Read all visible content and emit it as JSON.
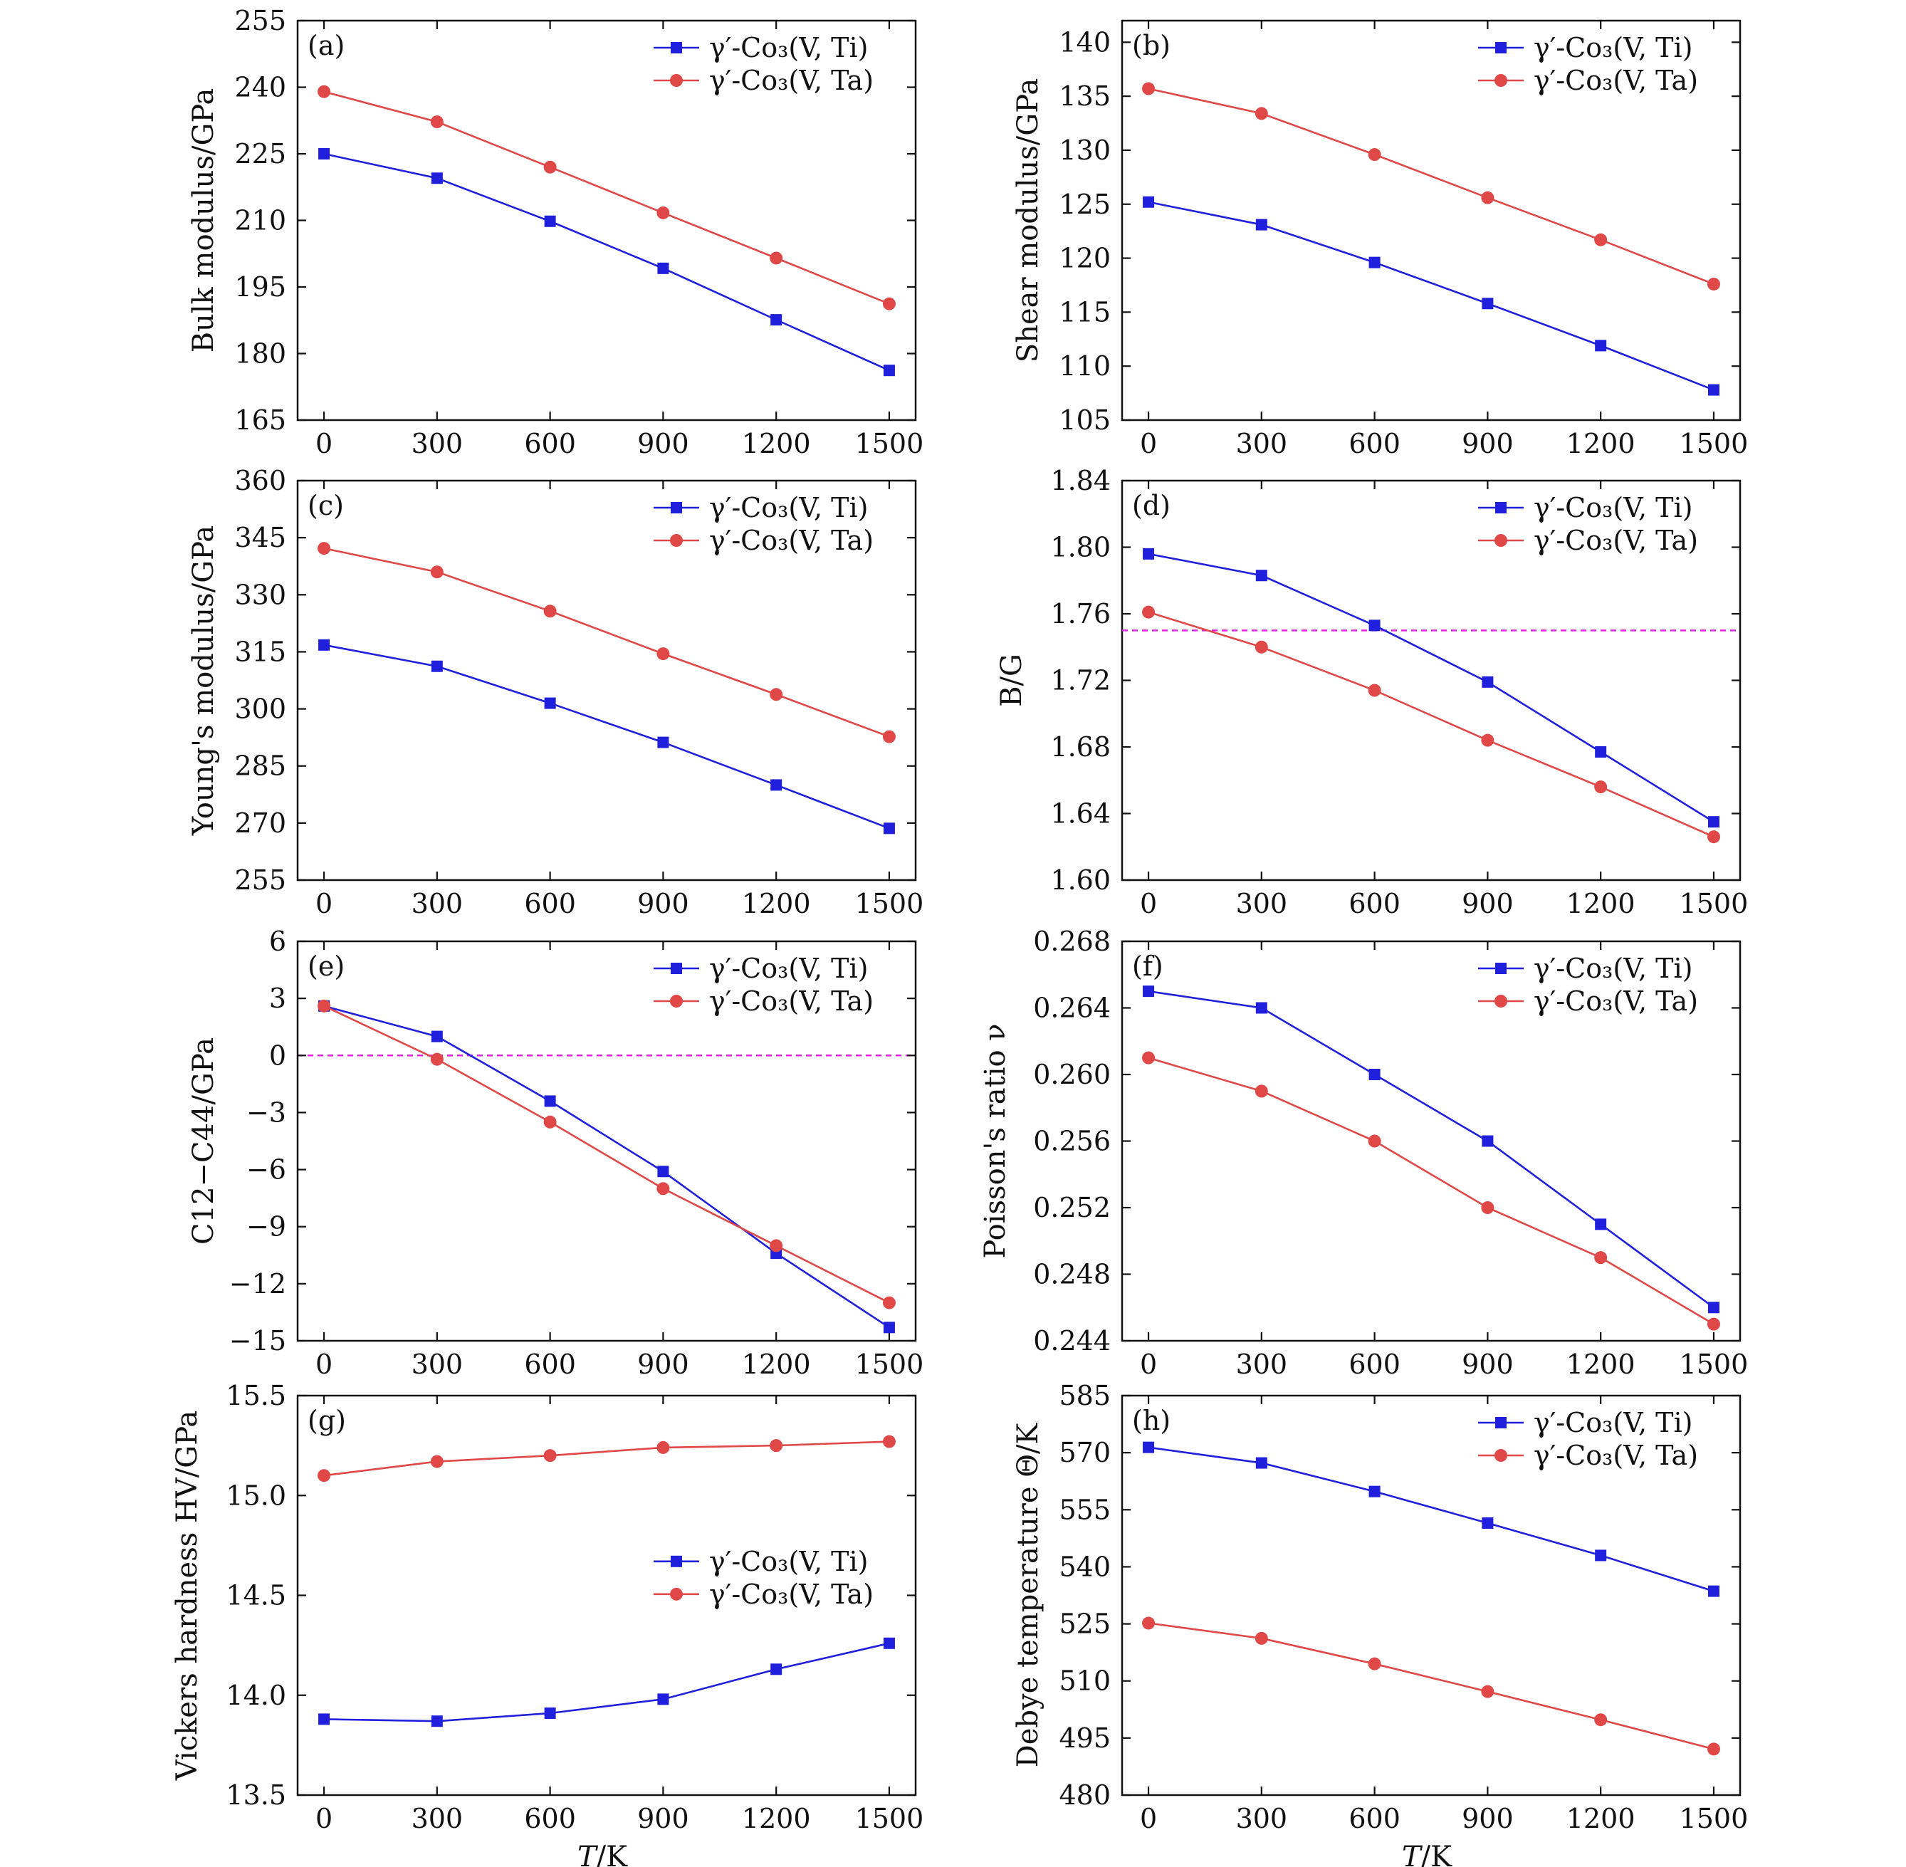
{
  "figure": {
    "x_ticks": [
      "0",
      "300",
      "600",
      "900",
      "1200",
      "1500"
    ],
    "x_values": [
      0,
      300,
      600,
      900,
      1200,
      1500
    ],
    "x_label_var": "T",
    "x_label_unit": "/K",
    "legend": {
      "ti": "γ′-Co₃(V, Ti)",
      "ta": "γ′-Co₃(V, Ta)"
    },
    "colors": {
      "ti": "#1f1fdc",
      "ta": "#e04848",
      "reference_line": "#e020e0"
    }
  },
  "chart_data": [
    {
      "type": "line",
      "panel": "(a)",
      "title": "",
      "ylabel": "Bulk modulus/GPa",
      "xlabel": "T/K",
      "x": [
        0,
        300,
        600,
        900,
        1200,
        1500
      ],
      "ylim": [
        165,
        255
      ],
      "yticks": [
        165,
        180,
        195,
        210,
        225,
        240,
        255
      ],
      "ytick_labels": [
        "165",
        "180",
        "195",
        "210",
        "225",
        "240",
        "255"
      ],
      "legend_position": "top-right",
      "series": [
        {
          "name": "γ′-Co₃(V, Ti)",
          "marker": "square",
          "values": [
            225.0,
            219.5,
            209.8,
            199.2,
            187.6,
            176.2
          ]
        },
        {
          "name": "γ′-Co₃(V, Ta)",
          "marker": "circle",
          "values": [
            239.0,
            232.2,
            222.0,
            211.7,
            201.5,
            191.2
          ]
        }
      ]
    },
    {
      "type": "line",
      "panel": "(b)",
      "title": "",
      "ylabel": "Shear modulus/GPa",
      "xlabel": "T/K",
      "x": [
        0,
        300,
        600,
        900,
        1200,
        1500
      ],
      "ylim": [
        105,
        142
      ],
      "yticks": [
        105,
        110,
        115,
        120,
        125,
        130,
        135,
        140
      ],
      "ytick_labels": [
        "105",
        "110",
        "115",
        "120",
        "125",
        "130",
        "135",
        "140"
      ],
      "legend_position": "top-right",
      "series": [
        {
          "name": "γ′-Co₃(V, Ti)",
          "marker": "square",
          "values": [
            125.2,
            123.1,
            119.6,
            115.8,
            111.9,
            107.8
          ]
        },
        {
          "name": "γ′-Co₃(V, Ta)",
          "marker": "circle",
          "values": [
            135.7,
            133.4,
            129.6,
            125.6,
            121.7,
            117.6
          ]
        }
      ]
    },
    {
      "type": "line",
      "panel": "(c)",
      "title": "",
      "ylabel": "Young's modulus/GPa",
      "xlabel": "T/K",
      "x": [
        0,
        300,
        600,
        900,
        1200,
        1500
      ],
      "ylim": [
        255,
        360
      ],
      "yticks": [
        255,
        270,
        285,
        300,
        315,
        330,
        345,
        360
      ],
      "ytick_labels": [
        "255",
        "270",
        "285",
        "300",
        "315",
        "330",
        "345",
        "360"
      ],
      "legend_position": "top-right",
      "series": [
        {
          "name": "γ′-Co₃(V, Ti)",
          "marker": "square",
          "values": [
            316.8,
            311.2,
            301.5,
            291.2,
            280.0,
            268.6
          ]
        },
        {
          "name": "γ′-Co₃(V, Ta)",
          "marker": "circle",
          "values": [
            342.2,
            336.0,
            325.7,
            314.5,
            303.8,
            292.7
          ]
        }
      ]
    },
    {
      "type": "line",
      "panel": "(d)",
      "title": "",
      "ylabel": "B/G",
      "xlabel": "T/K",
      "x": [
        0,
        300,
        600,
        900,
        1200,
        1500
      ],
      "ylim": [
        1.6,
        1.84
      ],
      "yticks": [
        1.6,
        1.64,
        1.68,
        1.72,
        1.76,
        1.8,
        1.84
      ],
      "ytick_labels": [
        "1.60",
        "1.64",
        "1.68",
        "1.72",
        "1.76",
        "1.80",
        "1.84"
      ],
      "legend_position": "top-right",
      "reference_line": 1.75,
      "series": [
        {
          "name": "γ′-Co₃(V, Ti)",
          "marker": "square",
          "values": [
            1.796,
            1.783,
            1.753,
            1.719,
            1.677,
            1.635
          ]
        },
        {
          "name": "γ′-Co₃(V, Ta)",
          "marker": "circle",
          "values": [
            1.761,
            1.74,
            1.714,
            1.684,
            1.656,
            1.626
          ]
        }
      ]
    },
    {
      "type": "line",
      "panel": "(e)",
      "title": "",
      "ylabel": "C12−C44/GPa",
      "xlabel": "T/K",
      "x": [
        0,
        300,
        600,
        900,
        1200,
        1500
      ],
      "ylim": [
        -15,
        6
      ],
      "yticks": [
        -15,
        -12,
        -9,
        -6,
        -3,
        0,
        3,
        6
      ],
      "ytick_labels": [
        "−15",
        "−12",
        "−9",
        "−6",
        "−3",
        "0",
        "3",
        "6"
      ],
      "legend_position": "top-right",
      "reference_line": 0,
      "series": [
        {
          "name": "γ′-Co₃(V, Ti)",
          "marker": "square",
          "values": [
            2.6,
            1.0,
            -2.4,
            -6.1,
            -10.4,
            -14.3
          ]
        },
        {
          "name": "γ′-Co₃(V, Ta)",
          "marker": "circle",
          "values": [
            2.6,
            -0.2,
            -3.5,
            -7.0,
            -10.0,
            -13.0
          ]
        }
      ]
    },
    {
      "type": "line",
      "panel": "(f)",
      "title": "",
      "ylabel": "Poisson's ratio ν",
      "xlabel": "T/K",
      "x": [
        0,
        300,
        600,
        900,
        1200,
        1500
      ],
      "ylim": [
        0.244,
        0.268
      ],
      "yticks": [
        0.244,
        0.248,
        0.252,
        0.256,
        0.26,
        0.264,
        0.268
      ],
      "ytick_labels": [
        "0.244",
        "0.248",
        "0.252",
        "0.256",
        "0.260",
        "0.264",
        "0.268"
      ],
      "legend_position": "top-right",
      "series": [
        {
          "name": "γ′-Co₃(V, Ti)",
          "marker": "square",
          "values": [
            0.265,
            0.264,
            0.26,
            0.256,
            0.251,
            0.246
          ]
        },
        {
          "name": "γ′-Co₃(V, Ta)",
          "marker": "circle",
          "values": [
            0.261,
            0.259,
            0.256,
            0.252,
            0.249,
            0.245
          ]
        }
      ]
    },
    {
      "type": "line",
      "panel": "(g)",
      "title": "",
      "ylabel": "Vickers hardness HV/GPa",
      "xlabel": "T/K",
      "x": [
        0,
        300,
        600,
        900,
        1200,
        1500
      ],
      "ylim": [
        13.5,
        15.5
      ],
      "yticks": [
        13.5,
        14.0,
        14.5,
        15.0,
        15.5
      ],
      "ytick_labels": [
        "13.5",
        "14.0",
        "14.5",
        "15.0",
        "15.5"
      ],
      "legend_position": "right",
      "series": [
        {
          "name": "γ′-Co₃(V, Ti)",
          "marker": "square",
          "values": [
            13.88,
            13.87,
            13.91,
            13.98,
            14.13,
            14.26
          ]
        },
        {
          "name": "γ′-Co₃(V, Ta)",
          "marker": "circle",
          "values": [
            15.1,
            15.17,
            15.2,
            15.24,
            15.25,
            15.27
          ]
        }
      ]
    },
    {
      "type": "line",
      "panel": "(h)",
      "title": "",
      "ylabel": "Debye temperature Θ/K",
      "xlabel": "T/K",
      "x": [
        0,
        300,
        600,
        900,
        1200,
        1500
      ],
      "ylim": [
        480,
        585
      ],
      "yticks": [
        480,
        495,
        510,
        525,
        540,
        555,
        570,
        585
      ],
      "ytick_labels": [
        "480",
        "495",
        "510",
        "525",
        "540",
        "555",
        "570",
        "585"
      ],
      "legend_position": "top-right",
      "series": [
        {
          "name": "γ′-Co₃(V, Ti)",
          "marker": "square",
          "values": [
            571.4,
            567.3,
            559.8,
            551.5,
            543.0,
            533.6
          ]
        },
        {
          "name": "γ′-Co₃(V, Ta)",
          "marker": "circle",
          "values": [
            525.2,
            521.2,
            514.5,
            507.2,
            499.8,
            492.1
          ]
        }
      ]
    }
  ]
}
